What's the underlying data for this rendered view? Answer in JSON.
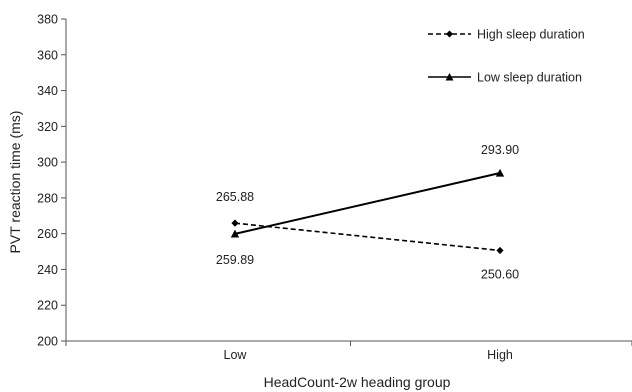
{
  "chart_data": {
    "type": "line",
    "title": "",
    "xlabel": "HeadCount-2w heading group",
    "ylabel": "PVT reaction time (ms)",
    "categories": [
      "Low",
      "High"
    ],
    "ylim": [
      200,
      380
    ],
    "yticks": [
      200,
      220,
      240,
      260,
      280,
      300,
      320,
      340,
      360,
      380
    ],
    "grid": false,
    "legend_position": "top-right",
    "series": [
      {
        "name": "High sleep duration",
        "values": [
          265.88,
          250.6
        ],
        "value_labels": [
          "265.88",
          "250.60"
        ],
        "line_style": "dashed",
        "marker": "diamond",
        "color": "#000000"
      },
      {
        "name": "Low sleep duration",
        "values": [
          259.89,
          293.9
        ],
        "value_labels": [
          "259.89",
          "293.90"
        ],
        "line_style": "solid",
        "marker": "triangle",
        "color": "#000000"
      }
    ]
  }
}
